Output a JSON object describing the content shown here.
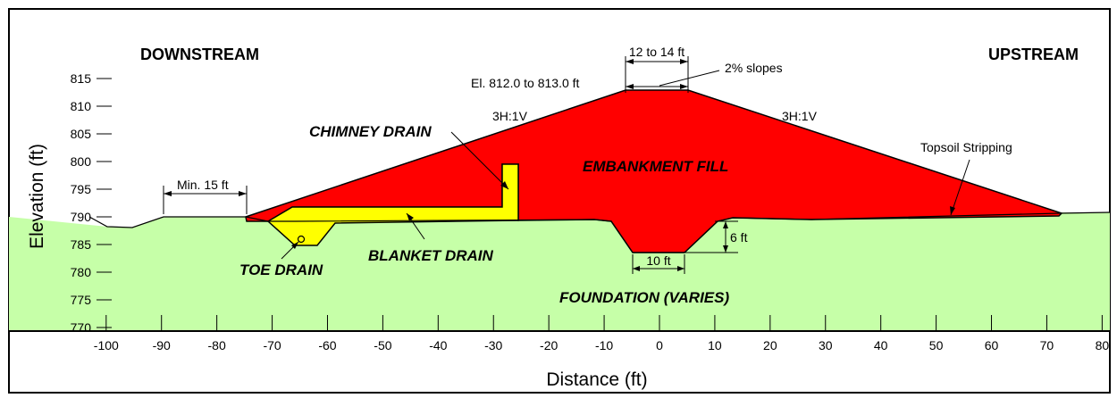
{
  "header": {
    "downstream": "DOWNSTREAM",
    "upstream": "UPSTREAM"
  },
  "axes": {
    "xlabel": "Distance (ft)",
    "ylabel": "Elevation (ft)",
    "x_ticks": [
      "-100",
      "-90",
      "-80",
      "-70",
      "-60",
      "-50",
      "-40",
      "-30",
      "-20",
      "-10",
      "0",
      "10",
      "20",
      "30",
      "40",
      "50",
      "60",
      "70",
      "80"
    ],
    "y_ticks": [
      "815",
      "810",
      "805",
      "800",
      "795",
      "790",
      "785",
      "780",
      "775",
      "770"
    ],
    "xlim": [
      -100,
      80
    ],
    "ylim": [
      770,
      815
    ]
  },
  "zones": {
    "embankment_fill": "EMBANKMENT FILL",
    "chimney_drain": "CHIMNEY DRAIN",
    "blanket_drain": "BLANKET DRAIN",
    "toe_drain": "TOE DRAIN",
    "foundation": "FOUNDATION (VARIES)"
  },
  "annotations": {
    "crest_width": "12 to 14 ft",
    "crest_slope": "2% slopes",
    "crest_elevation": "El. 812.0 to 813.0 ft",
    "downstream_slope": "3H:1V",
    "upstream_slope": "3H:1V",
    "topsoil": "Topsoil Stripping",
    "min_bench": "Min. 15 ft",
    "cutoff_depth": "6 ft",
    "cutoff_width": "10 ft"
  },
  "colors": {
    "embankment": "#ff0000",
    "drain": "#ffff00",
    "foundation": "#c6ffa8",
    "outline": "#000000"
  }
}
